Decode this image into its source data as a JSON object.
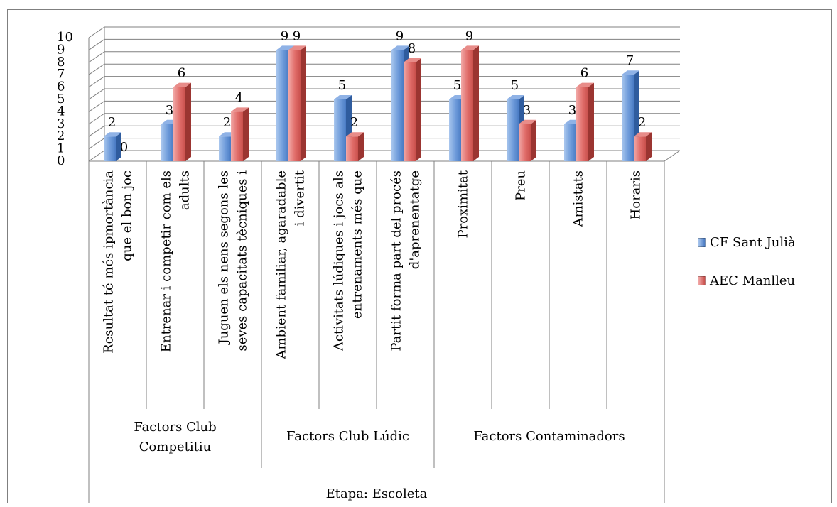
{
  "chart_data": {
    "type": "bar",
    "title": "",
    "xlabel": "",
    "ylabel": "",
    "ylim": [
      0,
      10
    ],
    "yticks": [
      "0",
      "1",
      "2",
      "3",
      "4",
      "5",
      "6",
      "7",
      "8",
      "9",
      "10"
    ],
    "grid": true,
    "legend_position": "right",
    "categories": [
      [
        "Resultat té més ipmortància",
        "que el bon joc"
      ],
      [
        "Entrenar i competir com els",
        "adults"
      ],
      [
        "Juguen els nens segons les",
        "seves capacitats tècniques i"
      ],
      [
        "Ambient familiar, agaradable",
        "i divertit"
      ],
      [
        "Activitats lúdiques i jocs als",
        "entrenaments més que"
      ],
      [
        "Partit forma part del procés",
        "d'aprenentatge"
      ],
      [
        "Proximitat"
      ],
      [
        "Preu"
      ],
      [
        "Amistats"
      ],
      [
        "Horaris"
      ]
    ],
    "groups": [
      {
        "label": [
          "Factors Club",
          "Competitiu"
        ]
      },
      {
        "label": [
          "Factors Club Lúdic"
        ]
      },
      {
        "label": [
          "Factors Contaminadors"
        ]
      }
    ],
    "stage": "Etapa: Escoleta",
    "series": [
      {
        "name": "CF Sant Julià",
        "color": "#4F81BD",
        "values": [
          2,
          3,
          2,
          9,
          5,
          9,
          5,
          5,
          3,
          7
        ]
      },
      {
        "name": "AEC Manlleu",
        "color": "#C0504D",
        "values": [
          0,
          6,
          4,
          9,
          2,
          8,
          9,
          3,
          6,
          2
        ]
      }
    ]
  }
}
